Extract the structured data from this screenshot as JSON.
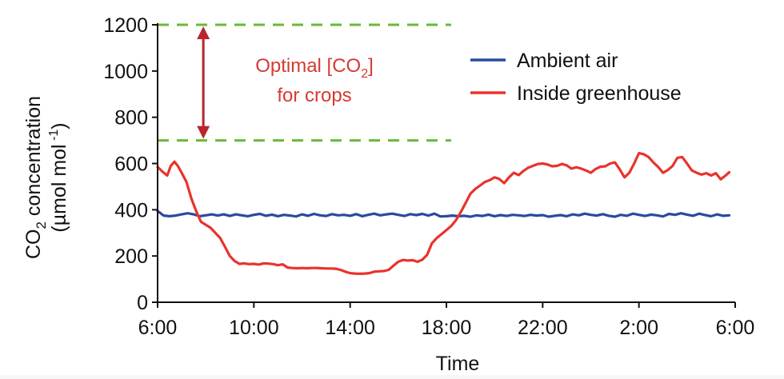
{
  "chart_data": {
    "type": "line",
    "xlabel": "Time",
    "ylabel_line1_prefix": "CO",
    "ylabel_line1_sub": "2",
    "ylabel_line1_suffix": " concentration",
    "ylabel_line2_prefix": "(µmol mol",
    "ylabel_line2_sup": " -1",
    "ylabel_line2_suffix": ")",
    "ylim": [
      0,
      1200
    ],
    "yticks": [
      0,
      200,
      400,
      600,
      800,
      1000,
      1200
    ],
    "x_range_hours": [
      6,
      30
    ],
    "xticks": [
      {
        "h": 6,
        "label": "6:00"
      },
      {
        "h": 10,
        "label": "10:00"
      },
      {
        "h": 14,
        "label": "14:00"
      },
      {
        "h": 18,
        "label": "18:00"
      },
      {
        "h": 22,
        "label": "22:00"
      },
      {
        "h": 26,
        "label": "2:00"
      },
      {
        "h": 30,
        "label": "6:00"
      }
    ],
    "grid": false,
    "legend_position": "top-right",
    "series": [
      {
        "name": "Ambient air",
        "color": "#2a4aa0",
        "points": [
          [
            6.0,
            395
          ],
          [
            6.25,
            375
          ],
          [
            6.5,
            372
          ],
          [
            6.75,
            375
          ],
          [
            7.0,
            380
          ],
          [
            7.25,
            385
          ],
          [
            7.5,
            380
          ],
          [
            7.75,
            372
          ],
          [
            8.0,
            376
          ],
          [
            8.25,
            380
          ],
          [
            8.5,
            375
          ],
          [
            8.75,
            380
          ],
          [
            9.0,
            373
          ],
          [
            9.25,
            380
          ],
          [
            9.5,
            376
          ],
          [
            9.75,
            372
          ],
          [
            10.0,
            378
          ],
          [
            10.25,
            382
          ],
          [
            10.5,
            374
          ],
          [
            10.75,
            379
          ],
          [
            11.0,
            372
          ],
          [
            11.25,
            378
          ],
          [
            11.5,
            375
          ],
          [
            11.75,
            371
          ],
          [
            12.0,
            380
          ],
          [
            12.25,
            374
          ],
          [
            12.5,
            382
          ],
          [
            12.75,
            376
          ],
          [
            13.0,
            373
          ],
          [
            13.25,
            381
          ],
          [
            13.5,
            376
          ],
          [
            13.75,
            378
          ],
          [
            14.0,
            374
          ],
          [
            14.25,
            381
          ],
          [
            14.5,
            372
          ],
          [
            14.75,
            378
          ],
          [
            15.0,
            383
          ],
          [
            15.25,
            376
          ],
          [
            15.5,
            380
          ],
          [
            15.75,
            383
          ],
          [
            16.0,
            378
          ],
          [
            16.25,
            373
          ],
          [
            16.5,
            381
          ],
          [
            16.75,
            377
          ],
          [
            17.0,
            382
          ],
          [
            17.25,
            375
          ],
          [
            17.5,
            383
          ],
          [
            17.75,
            371
          ],
          [
            18.0,
            372
          ],
          [
            18.25,
            375
          ],
          [
            18.5,
            372
          ],
          [
            18.75,
            374
          ],
          [
            19.0,
            370
          ],
          [
            19.25,
            376
          ],
          [
            19.5,
            373
          ],
          [
            19.75,
            379
          ],
          [
            20.0,
            372
          ],
          [
            20.25,
            377
          ],
          [
            20.5,
            373
          ],
          [
            20.75,
            378
          ],
          [
            21.0,
            376
          ],
          [
            21.25,
            373
          ],
          [
            21.5,
            378
          ],
          [
            21.75,
            375
          ],
          [
            22.0,
            377
          ],
          [
            22.25,
            370
          ],
          [
            22.5,
            374
          ],
          [
            22.75,
            377
          ],
          [
            23.0,
            372
          ],
          [
            23.25,
            380
          ],
          [
            23.5,
            376
          ],
          [
            23.75,
            383
          ],
          [
            24.0,
            378
          ],
          [
            24.25,
            375
          ],
          [
            24.5,
            381
          ],
          [
            24.75,
            374
          ],
          [
            25.0,
            370
          ],
          [
            25.25,
            378
          ],
          [
            25.5,
            374
          ],
          [
            25.75,
            383
          ],
          [
            26.0,
            378
          ],
          [
            26.25,
            373
          ],
          [
            26.5,
            379
          ],
          [
            26.75,
            376
          ],
          [
            27.0,
            371
          ],
          [
            27.25,
            382
          ],
          [
            27.5,
            378
          ],
          [
            27.75,
            385
          ],
          [
            28.0,
            379
          ],
          [
            28.25,
            374
          ],
          [
            28.5,
            383
          ],
          [
            28.75,
            377
          ],
          [
            29.0,
            372
          ],
          [
            29.25,
            380
          ],
          [
            29.5,
            374
          ],
          [
            29.75,
            376
          ]
        ]
      },
      {
        "name": "Inside greenhouse",
        "color": "#e8332e",
        "points": [
          [
            6.0,
            585
          ],
          [
            6.2,
            565
          ],
          [
            6.4,
            548
          ],
          [
            6.55,
            590
          ],
          [
            6.7,
            608
          ],
          [
            6.85,
            588
          ],
          [
            7.0,
            560
          ],
          [
            7.2,
            520
          ],
          [
            7.4,
            450
          ],
          [
            7.6,
            395
          ],
          [
            7.8,
            348
          ],
          [
            8.0,
            335
          ],
          [
            8.2,
            322
          ],
          [
            8.4,
            300
          ],
          [
            8.6,
            278
          ],
          [
            8.8,
            240
          ],
          [
            9.0,
            200
          ],
          [
            9.2,
            178
          ],
          [
            9.4,
            166
          ],
          [
            9.6,
            168
          ],
          [
            9.8,
            165
          ],
          [
            10.0,
            166
          ],
          [
            10.2,
            163
          ],
          [
            10.4,
            168
          ],
          [
            10.6,
            167
          ],
          [
            10.8,
            165
          ],
          [
            11.0,
            160
          ],
          [
            11.2,
            164
          ],
          [
            11.4,
            150
          ],
          [
            11.6,
            148
          ],
          [
            11.8,
            147
          ],
          [
            12.0,
            148
          ],
          [
            12.2,
            147
          ],
          [
            12.4,
            148
          ],
          [
            12.6,
            148
          ],
          [
            12.8,
            147
          ],
          [
            13.0,
            146
          ],
          [
            13.2,
            146
          ],
          [
            13.4,
            145
          ],
          [
            13.6,
            140
          ],
          [
            13.8,
            132
          ],
          [
            14.0,
            126
          ],
          [
            14.2,
            124
          ],
          [
            14.4,
            123
          ],
          [
            14.6,
            124
          ],
          [
            14.8,
            126
          ],
          [
            15.0,
            132
          ],
          [
            15.2,
            134
          ],
          [
            15.4,
            135
          ],
          [
            15.6,
            140
          ],
          [
            15.8,
            158
          ],
          [
            16.0,
            175
          ],
          [
            16.2,
            183
          ],
          [
            16.4,
            180
          ],
          [
            16.6,
            182
          ],
          [
            16.8,
            175
          ],
          [
            17.0,
            184
          ],
          [
            17.2,
            205
          ],
          [
            17.4,
            255
          ],
          [
            17.6,
            278
          ],
          [
            17.8,
            295
          ],
          [
            18.0,
            312
          ],
          [
            18.2,
            330
          ],
          [
            18.4,
            355
          ],
          [
            18.6,
            390
          ],
          [
            18.8,
            430
          ],
          [
            19.0,
            470
          ],
          [
            19.2,
            490
          ],
          [
            19.4,
            505
          ],
          [
            19.6,
            520
          ],
          [
            19.8,
            528
          ],
          [
            20.0,
            540
          ],
          [
            20.2,
            533
          ],
          [
            20.4,
            515
          ],
          [
            20.6,
            540
          ],
          [
            20.8,
            560
          ],
          [
            21.0,
            550
          ],
          [
            21.2,
            568
          ],
          [
            21.4,
            582
          ],
          [
            21.6,
            590
          ],
          [
            21.8,
            598
          ],
          [
            22.0,
            600
          ],
          [
            22.2,
            596
          ],
          [
            22.4,
            588
          ],
          [
            22.6,
            590
          ],
          [
            22.8,
            598
          ],
          [
            23.0,
            592
          ],
          [
            23.2,
            578
          ],
          [
            23.4,
            584
          ],
          [
            23.6,
            578
          ],
          [
            23.8,
            570
          ],
          [
            24.0,
            560
          ],
          [
            24.2,
            576
          ],
          [
            24.4,
            586
          ],
          [
            24.6,
            588
          ],
          [
            24.8,
            600
          ],
          [
            25.0,
            605
          ],
          [
            25.2,
            575
          ],
          [
            25.4,
            540
          ],
          [
            25.6,
            560
          ],
          [
            25.8,
            600
          ],
          [
            26.0,
            645
          ],
          [
            26.2,
            640
          ],
          [
            26.4,
            628
          ],
          [
            26.6,
            605
          ],
          [
            26.8,
            585
          ],
          [
            27.0,
            560
          ],
          [
            27.2,
            572
          ],
          [
            27.4,
            590
          ],
          [
            27.6,
            625
          ],
          [
            27.8,
            628
          ],
          [
            28.0,
            600
          ],
          [
            28.2,
            570
          ],
          [
            28.4,
            560
          ],
          [
            28.6,
            552
          ],
          [
            28.8,
            558
          ],
          [
            29.0,
            548
          ],
          [
            29.2,
            558
          ],
          [
            29.4,
            532
          ],
          [
            29.6,
            548
          ],
          [
            29.75,
            562
          ]
        ]
      }
    ],
    "optimal_band": {
      "low": 700,
      "high": 1200,
      "line_color": "#6ab83a",
      "arrow_color": "#b8262b",
      "label_line1_prefix": "Optimal [CO",
      "label_line1_sub": "2",
      "label_line1_suffix": "]",
      "label_line2": "for crops"
    }
  }
}
